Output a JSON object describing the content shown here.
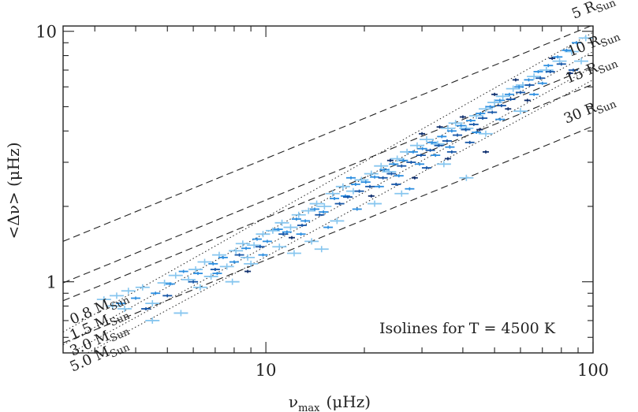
{
  "chart_data": {
    "type": "scatter",
    "title": "",
    "xlabel": "ν",
    "xlabel_subscript": "max",
    "xlabel_units": "(μHz)",
    "ylabel": "<Δν> (μHz)",
    "xscale": "log",
    "yscale": "log",
    "xlim": [
      2.4,
      100
    ],
    "ylim": [
      0.52,
      10.5
    ],
    "xticks": [
      {
        "value": 10,
        "label": "10"
      },
      {
        "value": 100,
        "label": "100"
      }
    ],
    "yticks": [
      {
        "value": 1,
        "label": "1"
      },
      {
        "value": 10,
        "label": "10"
      }
    ],
    "grid": false,
    "annotation": "Isolines for T = 4500 K",
    "radius_isolines": [
      {
        "label": "5",
        "unit": "R",
        "unit_sub": "Sun",
        "x": [
          2.4,
          100
        ],
        "y": [
          1.45,
          10.6
        ]
      },
      {
        "label": "10",
        "unit": "R",
        "unit_sub": "Sun",
        "x": [
          2.4,
          100
        ],
        "y": [
          0.99,
          7.25
        ]
      },
      {
        "label": "15",
        "unit": "R",
        "unit_sub": "Sun",
        "x": [
          2.4,
          100
        ],
        "y": [
          0.84,
          6.15
        ]
      },
      {
        "label": "30",
        "unit": "R",
        "unit_sub": "Sun",
        "x": [
          2.4,
          100
        ],
        "y": [
          0.57,
          4.18
        ]
      }
    ],
    "mass_isolines": [
      {
        "label": "0.8",
        "unit": "M",
        "unit_sub": "Sun",
        "x": [
          2.4,
          100
        ],
        "y": [
          0.63,
          9.9
        ]
      },
      {
        "label": "1.5",
        "unit": "M",
        "unit_sub": "Sun",
        "x": [
          2.4,
          100
        ],
        "y": [
          0.56,
          8.3
        ]
      },
      {
        "label": "3.0",
        "unit": "M",
        "unit_sub": "Sun",
        "x": [
          2.4,
          100
        ],
        "y": [
          0.5,
          7.2
        ]
      },
      {
        "label": "5.0",
        "unit": "M",
        "unit_sub": "Sun",
        "x": [
          2.4,
          100
        ],
        "y": [
          0.46,
          6.4
        ]
      }
    ],
    "series": [
      {
        "color": "#87c6ef",
        "points": [
          [
            3.2,
            0.85
          ],
          [
            3.5,
            0.88
          ],
          [
            3.8,
            0.92
          ],
          [
            3.4,
            0.8
          ],
          [
            4.2,
            0.95
          ],
          [
            4.5,
            0.82
          ],
          [
            4.9,
            0.99
          ],
          [
            5.3,
            1.06
          ],
          [
            5.8,
            1.02
          ],
          [
            6.1,
            1.12
          ],
          [
            6.5,
            1.2
          ],
          [
            6.8,
            1.05
          ],
          [
            7.2,
            1.28
          ],
          [
            7.6,
            1.15
          ],
          [
            8.1,
            1.33
          ],
          [
            8.5,
            1.42
          ],
          [
            9.2,
            1.4
          ],
          [
            9.8,
            1.55
          ],
          [
            10.5,
            1.6
          ],
          [
            11.2,
            1.72
          ],
          [
            11.9,
            1.65
          ],
          [
            12.6,
            1.85
          ],
          [
            13.5,
            1.92
          ],
          [
            14.3,
            2.05
          ],
          [
            15.1,
            2.0
          ],
          [
            16.0,
            2.25
          ],
          [
            17.2,
            2.4
          ],
          [
            18.5,
            2.3
          ],
          [
            19.6,
            2.55
          ],
          [
            21.0,
            2.7
          ],
          [
            22.5,
            2.9
          ],
          [
            23.8,
            2.75
          ],
          [
            25.2,
            3.1
          ],
          [
            27.0,
            3.3
          ],
          [
            29.0,
            3.5
          ],
          [
            31.0,
            3.7
          ],
          [
            33.5,
            3.55
          ],
          [
            36.0,
            4.1
          ],
          [
            38.0,
            4.3
          ],
          [
            41.0,
            4.1
          ],
          [
            44.0,
            4.6
          ],
          [
            47.0,
            4.9
          ],
          [
            50.0,
            5.2
          ],
          [
            53.0,
            5.5
          ],
          [
            57.0,
            5.9
          ],
          [
            61.0,
            6.1
          ],
          [
            66.0,
            6.6
          ],
          [
            72.0,
            7.0
          ],
          [
            79.0,
            7.6
          ],
          [
            86.0,
            8.3
          ],
          [
            95.0,
            9.4
          ],
          [
            92.0,
            7.6
          ],
          [
            60.0,
            4.8
          ],
          [
            35.0,
            2.95
          ],
          [
            26.0,
            2.25
          ],
          [
            13.8,
            1.45
          ],
          [
            9.0,
            1.18
          ],
          [
            6.3,
            0.95
          ],
          [
            5.5,
            0.75
          ],
          [
            4.5,
            0.7
          ],
          [
            3.7,
            0.78
          ],
          [
            14.8,
            1.35
          ],
          [
            47.0,
            3.9
          ],
          [
            41.0,
            2.6
          ],
          [
            21.5,
            2.05
          ],
          [
            16.5,
            1.75
          ],
          [
            8.8,
            1.25
          ],
          [
            11.0,
            1.38
          ],
          [
            7.9,
            1.0
          ],
          [
            12.2,
            1.3
          ]
        ]
      },
      {
        "color": "#2c8ee0",
        "points": [
          [
            3.6,
            0.82
          ],
          [
            4.0,
            0.86
          ],
          [
            4.6,
            0.9
          ],
          [
            5.1,
            0.98
          ],
          [
            5.6,
            1.1
          ],
          [
            6.2,
            1.08
          ],
          [
            6.9,
            1.18
          ],
          [
            7.4,
            1.25
          ],
          [
            8.0,
            1.2
          ],
          [
            8.7,
            1.36
          ],
          [
            9.4,
            1.48
          ],
          [
            10.1,
            1.45
          ],
          [
            10.9,
            1.62
          ],
          [
            11.6,
            1.58
          ],
          [
            12.4,
            1.78
          ],
          [
            13.2,
            1.75
          ],
          [
            14.1,
            1.95
          ],
          [
            15.0,
            1.9
          ],
          [
            16.2,
            2.15
          ],
          [
            17.5,
            2.2
          ],
          [
            18.8,
            2.45
          ],
          [
            20.2,
            2.5
          ],
          [
            21.5,
            2.62
          ],
          [
            23.0,
            2.8
          ],
          [
            24.6,
            2.95
          ],
          [
            26.3,
            3.05
          ],
          [
            28.2,
            3.3
          ],
          [
            30.1,
            3.4
          ],
          [
            32.2,
            3.6
          ],
          [
            34.5,
            3.8
          ],
          [
            37.0,
            4.0
          ],
          [
            39.5,
            4.2
          ],
          [
            42.3,
            4.4
          ],
          [
            45.3,
            4.7
          ],
          [
            48.5,
            5.0
          ],
          [
            51.9,
            5.3
          ],
          [
            55.5,
            5.6
          ],
          [
            59.4,
            6.0
          ],
          [
            63.6,
            6.4
          ],
          [
            68.0,
            6.9
          ],
          [
            73.0,
            7.3
          ],
          [
            78.0,
            7.9
          ],
          [
            83.0,
            8.4
          ],
          [
            89.0,
            9.0
          ],
          [
            22.2,
            2.4
          ],
          [
            25.5,
            2.65
          ],
          [
            29.5,
            2.95
          ],
          [
            33.0,
            3.2
          ],
          [
            19.0,
            1.95
          ],
          [
            15.5,
            1.65
          ],
          [
            9.8,
            1.28
          ],
          [
            7.1,
            1.08
          ],
          [
            12.8,
            1.55
          ],
          [
            27.5,
            2.35
          ],
          [
            36.5,
            3.45
          ],
          [
            44.0,
            3.95
          ],
          [
            52.0,
            4.45
          ],
          [
            66.0,
            5.6
          ],
          [
            70.0,
            6.2
          ],
          [
            18.2,
            2.6
          ]
        ]
      },
      {
        "color": "#1757a8",
        "points": [
          [
            4.3,
            0.78
          ],
          [
            5.0,
            0.88
          ],
          [
            6.0,
            1.0
          ],
          [
            7.0,
            1.12
          ],
          [
            8.3,
            1.28
          ],
          [
            9.6,
            1.38
          ],
          [
            11.3,
            1.55
          ],
          [
            12.9,
            1.68
          ],
          [
            14.6,
            1.85
          ],
          [
            16.8,
            2.05
          ],
          [
            19.3,
            2.3
          ],
          [
            20.8,
            2.4
          ],
          [
            22.8,
            2.6
          ],
          [
            24.2,
            2.7
          ],
          [
            26.0,
            2.9
          ],
          [
            27.8,
            3.0
          ],
          [
            29.8,
            3.2
          ],
          [
            31.8,
            3.35
          ],
          [
            33.8,
            3.5
          ],
          [
            35.8,
            3.65
          ],
          [
            38.5,
            3.85
          ],
          [
            40.8,
            4.05
          ],
          [
            43.2,
            4.25
          ],
          [
            46.0,
            4.5
          ],
          [
            49.2,
            4.75
          ],
          [
            52.5,
            5.05
          ],
          [
            56.0,
            5.35
          ],
          [
            60.0,
            5.7
          ],
          [
            64.0,
            6.1
          ],
          [
            69.0,
            6.5
          ],
          [
            74.0,
            6.9
          ],
          [
            80.0,
            7.4
          ],
          [
            87.0,
            7.0
          ],
          [
            31.0,
            2.85
          ],
          [
            37.0,
            3.3
          ],
          [
            42.0,
            3.6
          ],
          [
            25.0,
            2.45
          ],
          [
            17.8,
            2.18
          ]
        ]
      },
      {
        "color": "#0f2f6e",
        "points": [
          [
            30.0,
            3.9
          ],
          [
            34.0,
            4.15
          ],
          [
            36.0,
            3.1
          ],
          [
            28.5,
            2.6
          ],
          [
            40.0,
            4.55
          ],
          [
            45.0,
            4.05
          ],
          [
            50.0,
            5.6
          ],
          [
            55.0,
            4.9
          ],
          [
            63.0,
            5.3
          ],
          [
            24.0,
            3.05
          ],
          [
            21.0,
            2.2
          ],
          [
            47.0,
            3.3
          ],
          [
            12.0,
            1.5
          ],
          [
            8.8,
            1.1
          ],
          [
            58.0,
            6.4
          ],
          [
            75.0,
            7.8
          ],
          [
            85.0,
            6.8
          ]
        ]
      }
    ]
  }
}
